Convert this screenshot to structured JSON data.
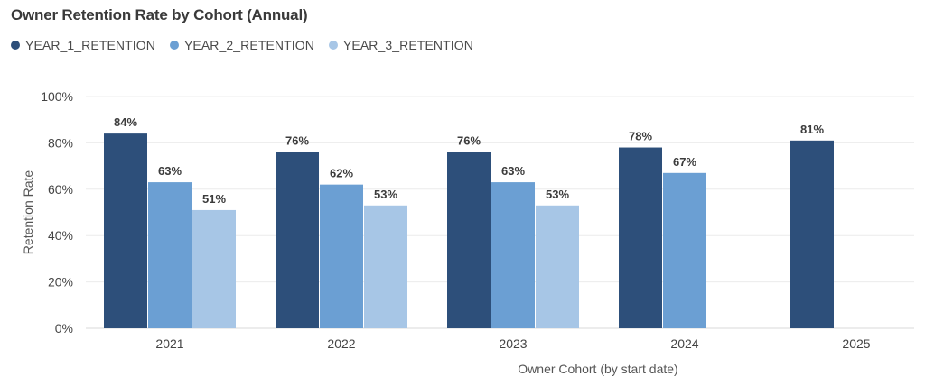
{
  "chart_data": {
    "type": "bar",
    "title": "Owner Retention Rate by Cohort (Annual)",
    "xlabel": "Owner Cohort (by start date)",
    "ylabel": "Retention Rate",
    "categories": [
      "2021",
      "2022",
      "2023",
      "2024",
      "2025"
    ],
    "series": [
      {
        "name": "YEAR_1_RETENTION",
        "color": "#2d4f7a",
        "values": [
          84,
          76,
          76,
          78,
          81
        ]
      },
      {
        "name": "YEAR_2_RETENTION",
        "color": "#6b9fd3",
        "values": [
          63,
          62,
          63,
          67,
          null
        ]
      },
      {
        "name": "YEAR_3_RETENTION",
        "color": "#a7c6e6",
        "values": [
          51,
          53,
          53,
          null,
          null
        ]
      }
    ],
    "data_labels": [
      [
        "84%",
        "76%",
        "76%",
        "78%",
        "81%"
      ],
      [
        "63%",
        "62%",
        "63%",
        "67%",
        null
      ],
      [
        "51%",
        "53%",
        "53%",
        null,
        null
      ]
    ],
    "y_ticks": [
      0,
      20,
      40,
      60,
      80,
      100
    ],
    "y_tick_labels": [
      "0%",
      "20%",
      "40%",
      "60%",
      "80%",
      "100%"
    ],
    "ylim": [
      0,
      100
    ],
    "grid": true,
    "legend_position": "top-left"
  }
}
